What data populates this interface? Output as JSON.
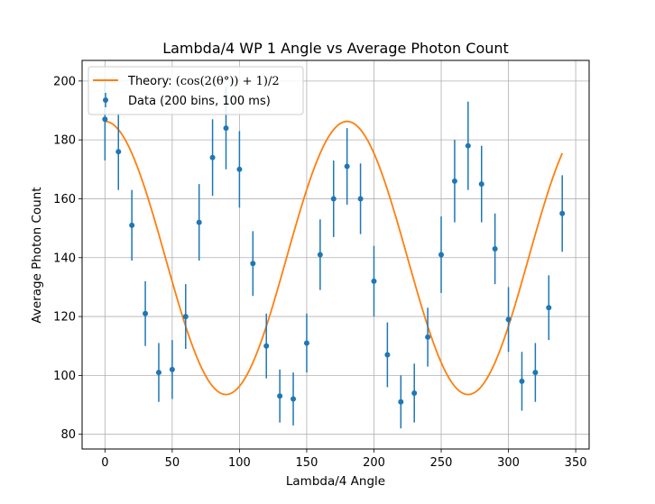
{
  "chart_data": {
    "type": "scatter",
    "title": "Lambda/4 WP 1 Angle vs Average Photon Count",
    "xlabel": "Lambda/4 Angle",
    "ylabel": "Average Photon Count",
    "xlim": [
      -17,
      360
    ],
    "ylim": [
      75,
      207
    ],
    "xticks": [
      0,
      50,
      100,
      150,
      200,
      250,
      300,
      350
    ],
    "yticks": [
      80,
      100,
      120,
      140,
      160,
      180,
      200
    ],
    "grid": true,
    "legend_position": "top-left",
    "colors": {
      "data": "#1f77b4",
      "theory": "#ff7f0e",
      "grid": "#b0b0b0"
    },
    "series": [
      {
        "name": "Data (200 bins, 100 ms)",
        "kind": "errorbar",
        "x": [
          0,
          10,
          20,
          30,
          40,
          50,
          60,
          70,
          80,
          90,
          100,
          110,
          120,
          130,
          140,
          150,
          160,
          170,
          180,
          190,
          200,
          210,
          220,
          230,
          240,
          250,
          260,
          270,
          280,
          290,
          300,
          310,
          320,
          330,
          340
        ],
        "y": [
          187,
          176,
          151,
          121,
          101,
          102,
          120,
          152,
          174,
          184,
          170,
          138,
          110,
          93,
          92,
          111,
          141,
          160,
          171,
          160,
          132,
          107,
          91,
          94,
          113,
          141,
          166,
          178,
          165,
          143,
          119,
          98,
          101,
          123,
          155
        ],
        "yerr": [
          14,
          13,
          12,
          11,
          10,
          10,
          11,
          13,
          13,
          14,
          13,
          11,
          11,
          9,
          9,
          10,
          12,
          13,
          13,
          12,
          12,
          11,
          9,
          10,
          10,
          13,
          14,
          15,
          13,
          12,
          11,
          10,
          10,
          11,
          13
        ]
      },
      {
        "name": "Theory: $(\\cos(2(\\theta^\\circ))+1)/2$",
        "kind": "line",
        "baseline": 93.5,
        "amplitude": 92.8,
        "x_range": [
          0,
          340
        ]
      }
    ],
    "legend": {
      "theory_prefix": "Theory: ",
      "theory_math": "(cos(2(θ°)) + 1)/2",
      "data_label": "Data (200 bins, 100 ms)"
    }
  }
}
